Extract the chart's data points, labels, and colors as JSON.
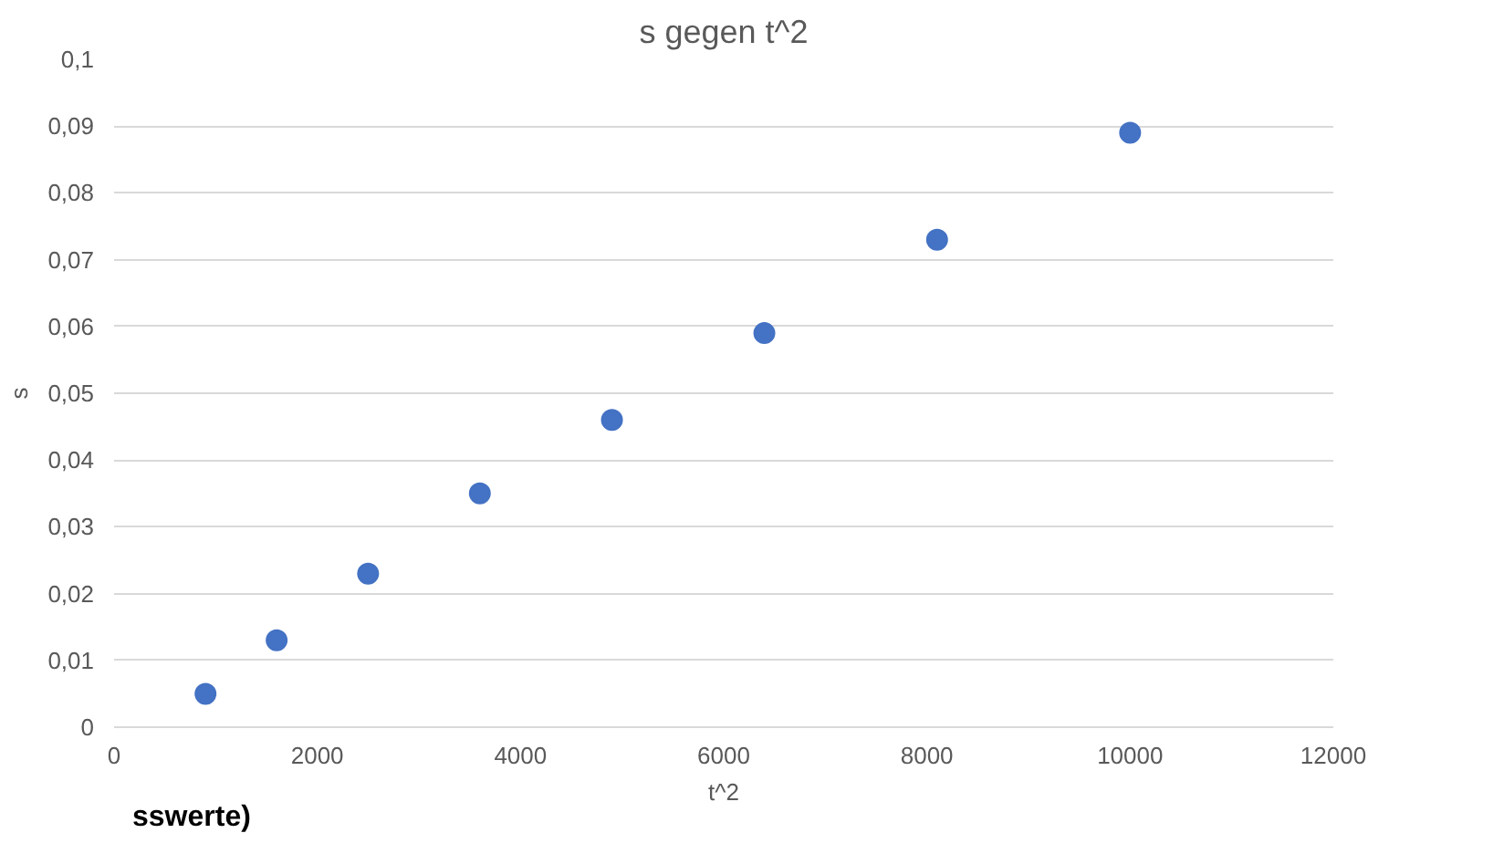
{
  "chart_data": {
    "type": "scatter",
    "title": "s gegen t^2",
    "xlabel": "t^2",
    "ylabel": "s",
    "x": [
      900,
      1600,
      2500,
      3600,
      4900,
      6400,
      8100,
      10000
    ],
    "series": [
      {
        "color": "#4472c4",
        "values": [
          0.005,
          0.013,
          0.023,
          0.035,
          0.046,
          0.059,
          0.073,
          0.089
        ]
      }
    ],
    "xlim": [
      0,
      12000
    ],
    "xticks": [
      0,
      2000,
      4000,
      6000,
      8000,
      10000,
      12000
    ],
    "ylim": [
      0,
      0.1
    ],
    "yticks": [
      0,
      {
        "value": 0.01,
        "label": "0,01"
      },
      {
        "value": 0.02,
        "label": "0,02"
      },
      {
        "value": 0.03,
        "label": "0,03"
      },
      {
        "value": 0.04,
        "label": "0,04"
      },
      {
        "value": 0.05,
        "label": "0,05"
      },
      {
        "value": 0.06,
        "label": "0,06"
      },
      {
        "value": 0.07,
        "label": "0,07"
      },
      {
        "value": 0.08,
        "label": "0,08"
      },
      {
        "value": 0.09,
        "label": "0,09"
      },
      {
        "value": 0.1,
        "label": "0,1"
      }
    ],
    "grid": "y",
    "marker": "circle",
    "annotations": [
      "sswerte)"
    ]
  }
}
